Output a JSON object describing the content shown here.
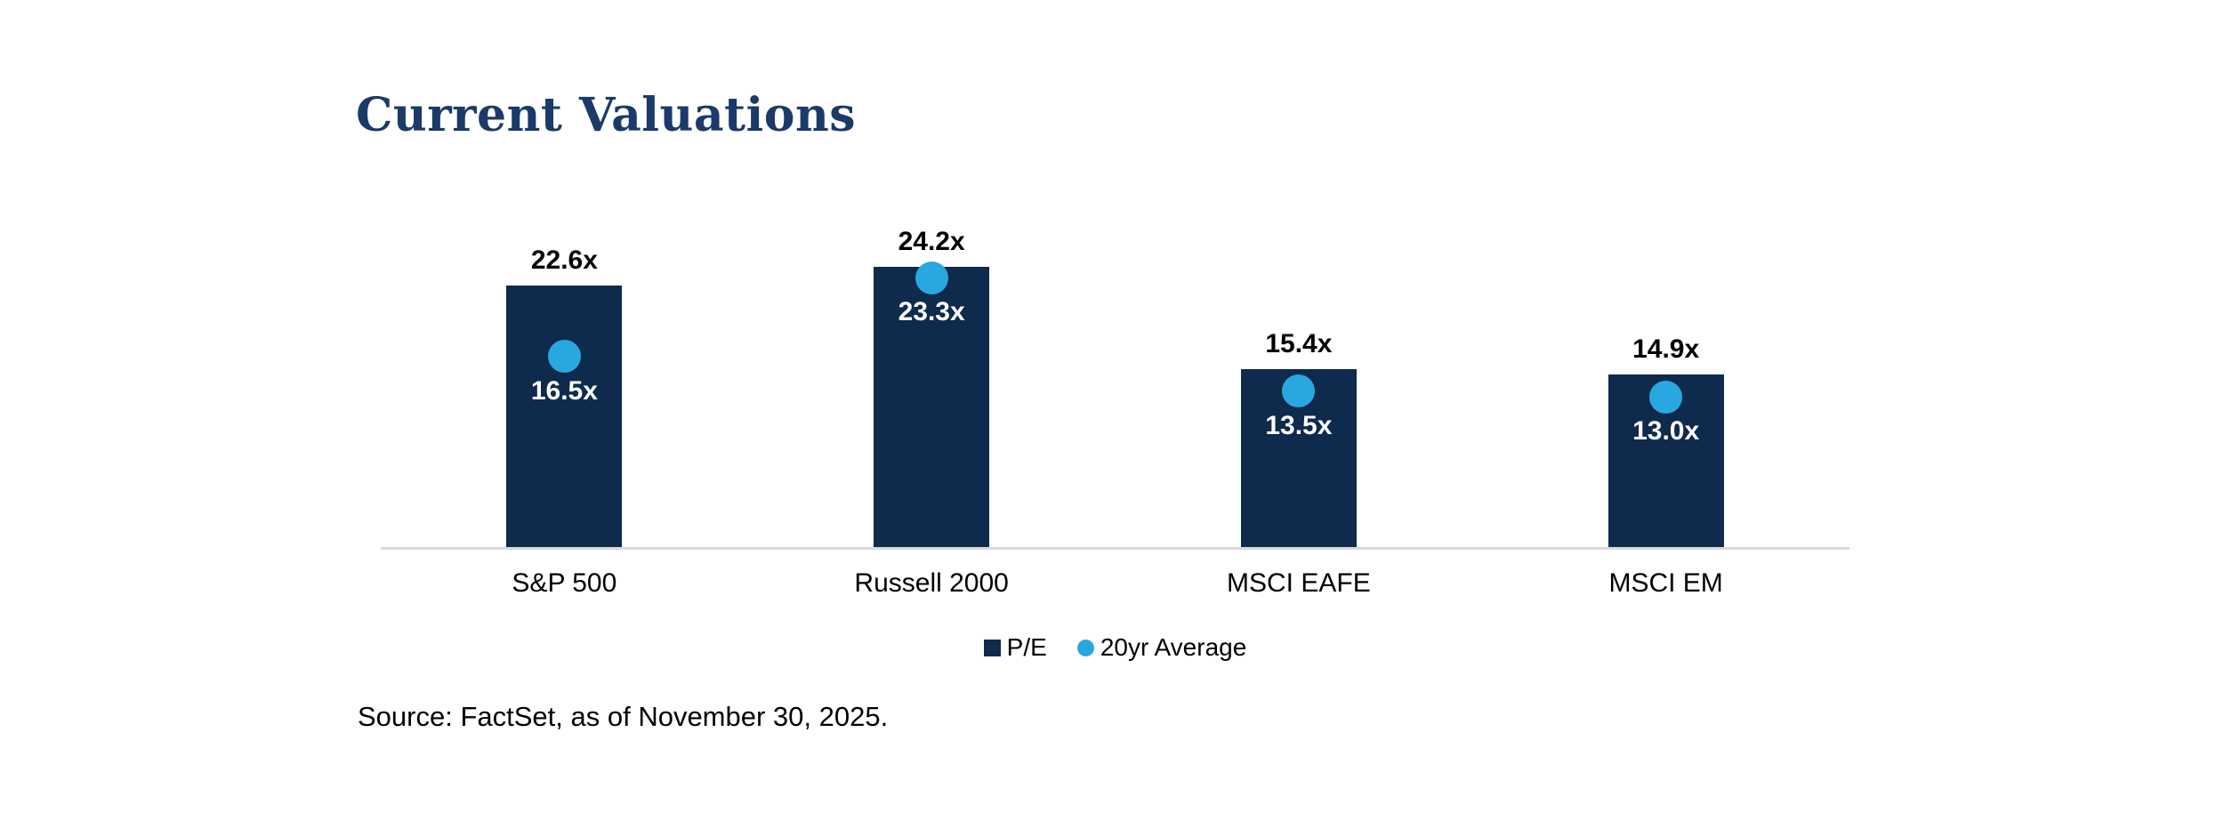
{
  "title": "Current Valuations",
  "source": "Source: FactSet, as of November 30, 2025.",
  "colors": {
    "bar": "#0e2a4d",
    "dot": "#29a8e0",
    "title": "#1b3a69",
    "axis": "#d9d9d9",
    "value_text": "#000000",
    "avg_text": "#ffffff"
  },
  "legend": {
    "pe_label": "P/E",
    "avg_label": "20yr Average"
  },
  "chart_data": {
    "type": "bar",
    "categories": [
      "S&P 500",
      "Russell 2000",
      "MSCI EAFE",
      "MSCI EM"
    ],
    "series": [
      {
        "name": "P/E",
        "render": "bar",
        "marker": "square",
        "color": "#0e2a4d",
        "values": [
          22.6,
          24.2,
          15.4,
          14.9
        ],
        "labels": [
          "22.6x",
          "24.2x",
          "15.4x",
          "14.9x"
        ]
      },
      {
        "name": "20yr Average",
        "render": "point",
        "marker": "circle",
        "color": "#29a8e0",
        "values": [
          16.5,
          23.3,
          13.5,
          13.0
        ],
        "labels": [
          "16.5x",
          "23.3x",
          "13.5x",
          "13.0x"
        ]
      }
    ],
    "title": "Current Valuations",
    "xlabel": "",
    "ylabel": "",
    "ylim": [
      0,
      24.2
    ],
    "grid": false,
    "axis_ticks": "none",
    "legend_position": "bottom",
    "value_suffix": "x"
  }
}
